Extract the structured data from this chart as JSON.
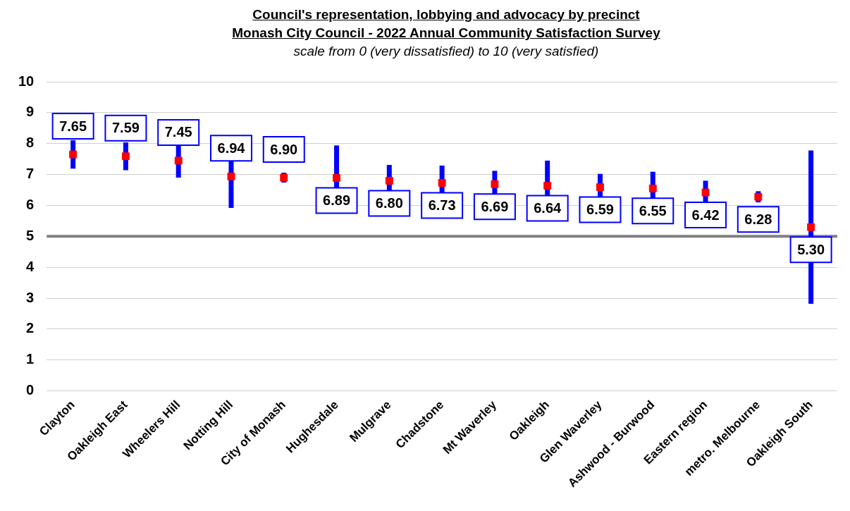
{
  "chart_data": {
    "type": "scatter",
    "title": "Council's representation, lobbying and advocacy by precinct\nMonash City Council - 2022 Annual Community Satisfaction Survey",
    "subtitle": "scale from 0 (very dissatisfied) to 10 (very satisfied)",
    "categories": [
      "Clayton",
      "Oakleigh East",
      "Wheelers Hill",
      "Notting Hill",
      "City of Monash",
      "Hughesdale",
      "Mulgrave",
      "Chadstone",
      "Mt Waverley",
      "Oakleigh",
      "Glen Waverley",
      "Ashwood - Burwood",
      "Eastern region",
      "metro. Melbourne",
      "Oakleigh South"
    ],
    "series": [
      {
        "color": "#ff0000",
        "values": [
          7.65,
          7.59,
          7.45,
          6.94,
          6.9,
          6.89,
          6.8,
          6.73,
          6.69,
          6.64,
          6.59,
          6.55,
          6.42,
          6.28,
          5.3
        ],
        "errors": [
          0.46,
          0.45,
          0.55,
          1.02,
          0.16,
          1.05,
          0.51,
          0.56,
          0.43,
          0.81,
          0.43,
          0.54,
          0.38,
          0.18,
          2.48
        ],
        "value_labels": [
          "7.65",
          "7.59",
          "7.45",
          "6.94",
          "6.90",
          "6.89",
          "6.80",
          "6.73",
          "6.69",
          "6.64",
          "6.59",
          "6.55",
          "6.42",
          "6.28",
          "5.30"
        ]
      }
    ],
    "ylim": [
      0,
      10
    ],
    "yticks": [
      0,
      1,
      2,
      3,
      4,
      5,
      6,
      7,
      8,
      9,
      10
    ],
    "grid": "y",
    "legend": false,
    "marker": "square",
    "ref_lines": [
      {
        "axis": "y",
        "value": 5,
        "color": "#808080"
      }
    ]
  }
}
